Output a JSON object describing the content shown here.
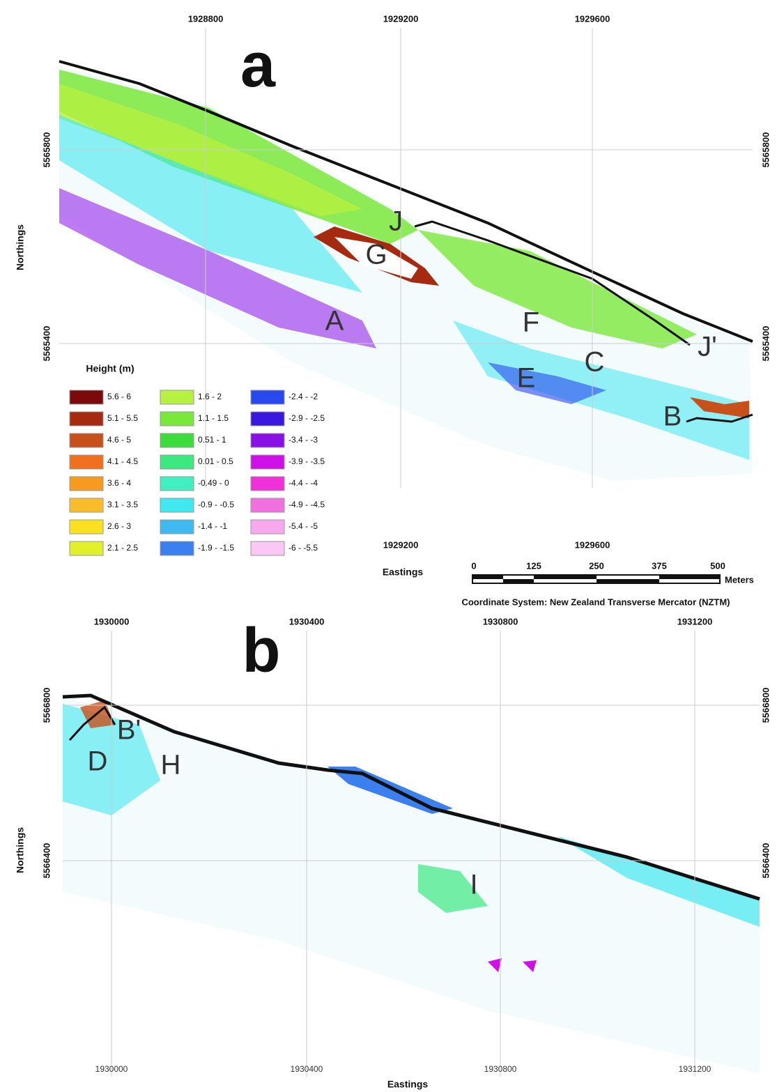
{
  "panel_a": {
    "label": "a",
    "x_ticks": [
      "1928800",
      "1929200",
      "1929600"
    ],
    "x_ticks_bottom": [
      "1929200",
      "1929600"
    ],
    "y_ticks": [
      "5565800",
      "5565400"
    ],
    "y_axis_label": "Northings",
    "x_axis_label": "Eastings",
    "features": [
      "J",
      "G",
      "A",
      "F",
      "E",
      "C",
      "J'",
      "B"
    ]
  },
  "legend": {
    "title": "Height (m)",
    "items": [
      {
        "label": "5.6 - 6",
        "color": "#7b0a0a"
      },
      {
        "label": "5.1 - 5.5",
        "color": "#a52a10"
      },
      {
        "label": "4.6 - 5",
        "color": "#c8501a"
      },
      {
        "label": "4.1 - 4.5",
        "color": "#f07020"
      },
      {
        "label": "3.6 - 4",
        "color": "#f79a20"
      },
      {
        "label": "3.1 - 3.5",
        "color": "#f9bd2a"
      },
      {
        "label": "2.6 - 3",
        "color": "#fde020"
      },
      {
        "label": "2.1 - 2.5",
        "color": "#e2f02a"
      },
      {
        "label": "1.6 - 2",
        "color": "#b6f040"
      },
      {
        "label": "1.1 - 1.5",
        "color": "#7ae83a"
      },
      {
        "label": "0.51 - 1",
        "color": "#3cdc3c"
      },
      {
        "label": "0.01 - 0.5",
        "color": "#3ce880"
      },
      {
        "label": "-0.49 - 0",
        "color": "#40f0c0"
      },
      {
        "label": "-0.9 - -0.5",
        "color": "#40e8f0"
      },
      {
        "label": "-1.4 - -1",
        "color": "#40b8f0"
      },
      {
        "label": "-1.9 - -1.5",
        "color": "#3c80f0"
      },
      {
        "label": "-2.4 - -2",
        "color": "#2848f0"
      },
      {
        "label": "-2.9 - -2.5",
        "color": "#3a18e0"
      },
      {
        "label": "-3.4 - -3",
        "color": "#8a10e8"
      },
      {
        "label": "-3.9 - -3.5",
        "color": "#d010e8"
      },
      {
        "label": "-4.4 - -4",
        "color": "#f030d8"
      },
      {
        "label": "-4.9 - -4.5",
        "color": "#f070e0"
      },
      {
        "label": "-5.4 - -5",
        "color": "#f8a8ee"
      },
      {
        "label": "-6 - -5.5",
        "color": "#fbc8f4"
      }
    ]
  },
  "scale_bar": {
    "ticks": [
      "0",
      "125",
      "250",
      "375",
      "500"
    ],
    "unit": "Meters"
  },
  "coordinate_system": "Coordinate System: New Zealand Transverse Mercator (NZTM)",
  "panel_b": {
    "label": "b",
    "x_ticks": [
      "1930000",
      "1930400",
      "1930800",
      "1931200"
    ],
    "y_ticks": [
      "5566800",
      "5566400"
    ],
    "y_axis_label": "Northings",
    "x_axis_label": "Eastings",
    "features": [
      "B'",
      "D",
      "H",
      "I"
    ]
  }
}
